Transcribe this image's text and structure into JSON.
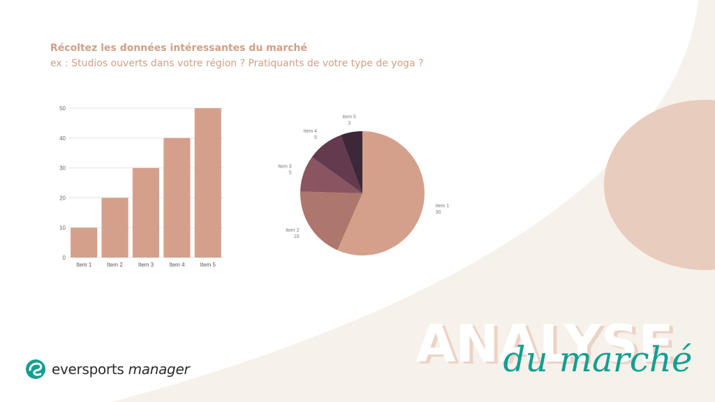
{
  "slide": {
    "heading": "Récoltez les données intéressantes du marché",
    "subheading": "ex : Studios ouverts dans votre région ? Pratiquants de votre type de yoga ?",
    "title_main": "ANALYSE",
    "title_script": "du marché",
    "logo_word1": "eversports",
    "logo_word2": "manager",
    "colors": {
      "background": "#f6f1ea",
      "panel": "#ffffff",
      "blob": "#e8ccbd",
      "accent": "#0fa091",
      "heading": "#cf9f86"
    },
    "icons": [
      "eversports-logo-icon"
    ]
  },
  "chart_data": [
    {
      "type": "bar",
      "categories": [
        "Item 1",
        "Item 2",
        "Item 3",
        "Item 4",
        "Item 5"
      ],
      "values": [
        10,
        20,
        30,
        40,
        50
      ],
      "ylim": [
        0,
        50
      ],
      "yticks": [
        0,
        10,
        20,
        30,
        40,
        50
      ],
      "grid": true,
      "color": "#d4a08b"
    },
    {
      "type": "pie",
      "labels": [
        "Item 1",
        "Item 2",
        "Item 3",
        "Item 4",
        "Item 5"
      ],
      "values": [
        30,
        10,
        5,
        5,
        3
      ],
      "colors": [
        "#d4a08b",
        "#ad776e",
        "#8a5560",
        "#643a4f",
        "#3d2838"
      ]
    }
  ]
}
